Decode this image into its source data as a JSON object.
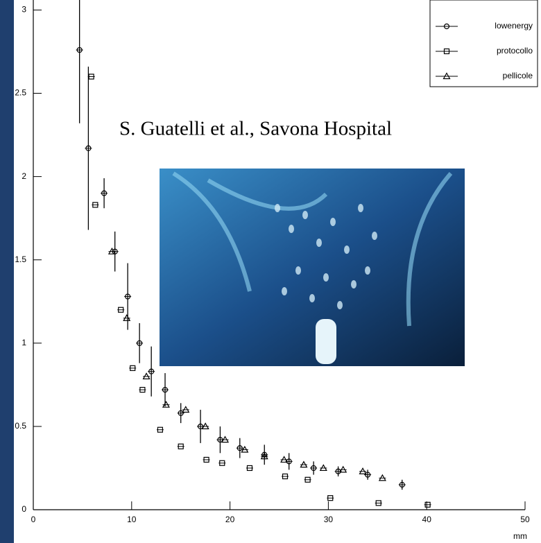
{
  "chart_data": {
    "type": "scatter",
    "annotation": "S. Guatelli et al., Savona Hospital",
    "x_label": "mm",
    "xlim": [
      0,
      50
    ],
    "xticks": [
      0,
      10,
      20,
      30,
      40,
      50
    ],
    "ylim": [
      0,
      3.06
    ],
    "yticks": [
      0,
      0.5,
      1,
      1.5,
      2,
      2.5,
      3
    ],
    "legend": "upper right",
    "series": [
      {
        "name": "lowenergy",
        "color": "#000000",
        "marker": "circle",
        "x": [
          4.7,
          5.6,
          7.2,
          8.3,
          9.6,
          10.8,
          12.0,
          13.4,
          15.0,
          17.0,
          19.0,
          21.0,
          23.5,
          26.0,
          28.5,
          31.0,
          34.0,
          37.5
        ],
        "values": [
          2.76,
          2.17,
          1.9,
          1.55,
          1.28,
          1.0,
          0.83,
          0.72,
          0.58,
          0.5,
          0.42,
          0.37,
          0.33,
          0.29,
          0.25,
          0.23,
          0.21,
          0.15
        ],
        "error": [
          0.44,
          0.49,
          0.09,
          0.12,
          0.2,
          0.12,
          0.15,
          0.1,
          0.06,
          0.1,
          0.08,
          0.06,
          0.06,
          0.05,
          0.04,
          0.03,
          0.03,
          0.03
        ]
      },
      {
        "name": "protocollo",
        "color": "#000000",
        "marker": "square",
        "x": [
          5.9,
          6.3,
          8.9,
          10.1,
          11.1,
          12.9,
          15.0,
          17.6,
          19.2,
          22.0,
          25.6,
          27.9,
          30.2,
          35.1,
          40.1
        ],
        "values": [
          2.6,
          1.83,
          1.2,
          0.85,
          0.72,
          0.48,
          0.38,
          0.3,
          0.28,
          0.25,
          0.2,
          0.18,
          0.07,
          0.04,
          0.03
        ]
      },
      {
        "name": "pellicole",
        "color": "#000000",
        "marker": "triangle",
        "x": [
          8.0,
          9.5,
          11.5,
          13.5,
          15.5,
          17.5,
          19.5,
          21.5,
          23.5,
          25.5,
          27.5,
          29.5,
          31.5,
          33.5,
          35.5
        ],
        "values": [
          1.55,
          1.15,
          0.8,
          0.63,
          0.6,
          0.5,
          0.42,
          0.36,
          0.32,
          0.3,
          0.27,
          0.25,
          0.24,
          0.23,
          0.19
        ]
      }
    ]
  }
}
